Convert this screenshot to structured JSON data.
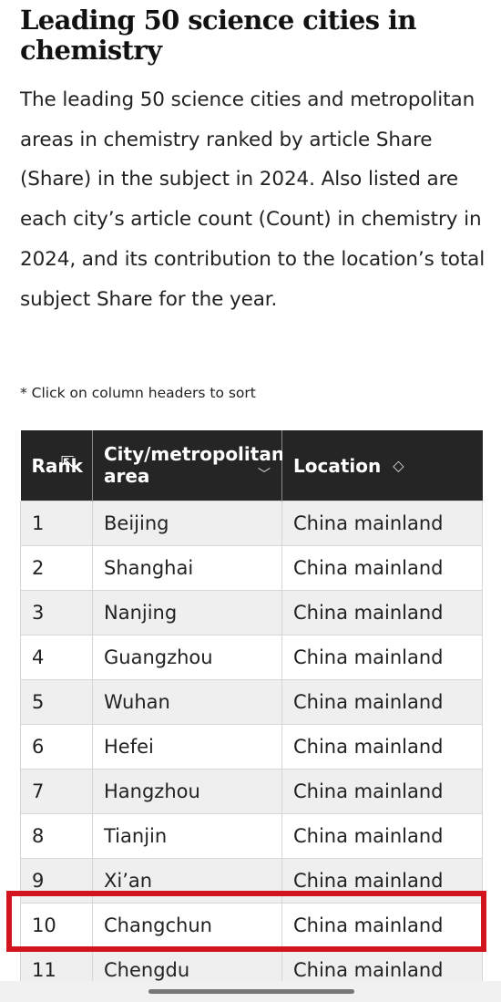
{
  "title": "Leading 50 science cities in chemistry",
  "description": "The leading 50 science cities and metropolitan areas in chemistry ranked by article Share (Share) in the subject in 2024. Also listed are each city’s article count (Count) in chemistry in 2024, and its contribution to the location’s total subject Share for the year.",
  "note": "* Click on column headers to sort",
  "table": {
    "headers": {
      "rank": "Rank",
      "city": "City/metropolitan area",
      "location": "Location"
    },
    "rows": [
      {
        "rank": "1",
        "city": "Beijing",
        "location": "China mainland"
      },
      {
        "rank": "2",
        "city": "Shanghai",
        "location": "China mainland"
      },
      {
        "rank": "3",
        "city": "Nanjing",
        "location": "China mainland"
      },
      {
        "rank": "4",
        "city": "Guangzhou",
        "location": "China mainland"
      },
      {
        "rank": "5",
        "city": "Wuhan",
        "location": "China mainland"
      },
      {
        "rank": "6",
        "city": "Hefei",
        "location": "China mainland"
      },
      {
        "rank": "7",
        "city": "Hangzhou",
        "location": "China mainland"
      },
      {
        "rank": "8",
        "city": "Tianjin",
        "location": "China mainland"
      },
      {
        "rank": "9",
        "city": "Xi’an",
        "location": "China mainland"
      },
      {
        "rank": "10",
        "city": "Changchun",
        "location": "China mainland"
      },
      {
        "rank": "11",
        "city": "Chengdu",
        "location": "China mainland"
      }
    ]
  },
  "icons": {
    "sort": "sort-updown-icon",
    "chevron": "chevron-down-icon",
    "cursor": "pointer-cursor-icon"
  },
  "colors": {
    "header_bg": "#252525",
    "highlight": "#d1141e"
  }
}
